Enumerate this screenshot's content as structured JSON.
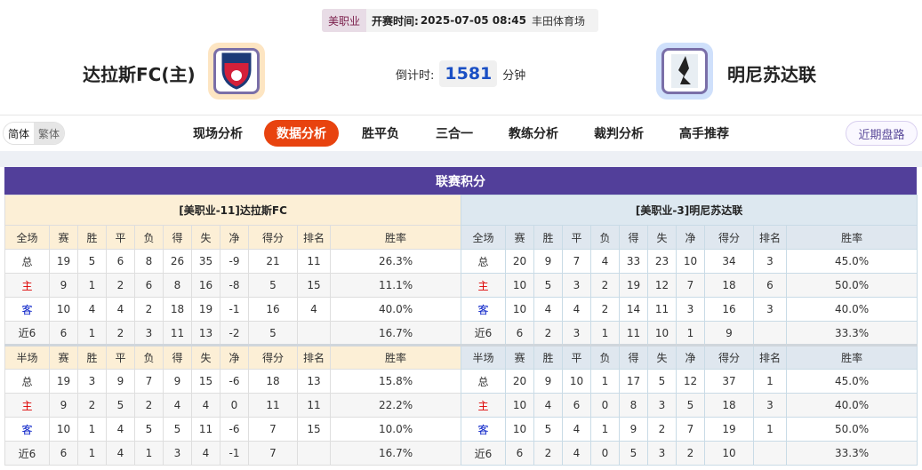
{
  "match": {
    "league": "美职业",
    "kickoff_label": "开赛时间:",
    "kickoff": "2025-07-05 08:45",
    "venue": "丰田体育场",
    "home_team": "达拉斯FC(主)",
    "away_team": "明尼苏达联",
    "countdown_label": "倒计时:",
    "countdown": "1581",
    "countdown_unit": "分钟"
  },
  "lang": {
    "simplified": "简体",
    "traditional": "繁体"
  },
  "nav": {
    "items": [
      "现场分析",
      "数据分析",
      "胜平负",
      "三合一",
      "教练分析",
      "裁判分析",
      "高手推荐"
    ],
    "active": "数据分析",
    "recent": "近期盘路"
  },
  "standings": {
    "title": "联赛积分",
    "columns_full": [
      "全场",
      "赛",
      "胜",
      "平",
      "负",
      "得",
      "失",
      "净",
      "得分",
      "排名",
      "胜率"
    ],
    "columns_half": [
      "半场",
      "赛",
      "胜",
      "平",
      "负",
      "得",
      "失",
      "净",
      "得分",
      "排名",
      "胜率"
    ],
    "colors": {
      "home": "#dd0000",
      "away": "#0019c6",
      "title_bg": "#523f9a"
    },
    "home": {
      "caption": "[美职业-11]达拉斯FC",
      "full": [
        [
          "总",
          "19",
          "5",
          "6",
          "8",
          "26",
          "35",
          "-9",
          "21",
          "11",
          "26.3%"
        ],
        [
          "主",
          "9",
          "1",
          "2",
          "6",
          "8",
          "16",
          "-8",
          "5",
          "15",
          "11.1%"
        ],
        [
          "客",
          "10",
          "4",
          "4",
          "2",
          "18",
          "19",
          "-1",
          "16",
          "4",
          "40.0%"
        ],
        [
          "近6",
          "6",
          "1",
          "2",
          "3",
          "11",
          "13",
          "-2",
          "5",
          "",
          "16.7%"
        ]
      ],
      "half": [
        [
          "总",
          "19",
          "3",
          "9",
          "7",
          "9",
          "15",
          "-6",
          "18",
          "13",
          "15.8%"
        ],
        [
          "主",
          "9",
          "2",
          "5",
          "2",
          "4",
          "4",
          "0",
          "11",
          "11",
          "22.2%"
        ],
        [
          "客",
          "10",
          "1",
          "4",
          "5",
          "5",
          "11",
          "-6",
          "7",
          "15",
          "10.0%"
        ],
        [
          "近6",
          "6",
          "1",
          "4",
          "1",
          "3",
          "4",
          "-1",
          "7",
          "",
          "16.7%"
        ]
      ]
    },
    "away": {
      "caption": "[美职业-3]明尼苏达联",
      "full": [
        [
          "总",
          "20",
          "9",
          "7",
          "4",
          "33",
          "23",
          "10",
          "34",
          "3",
          "45.0%"
        ],
        [
          "主",
          "10",
          "5",
          "3",
          "2",
          "19",
          "12",
          "7",
          "18",
          "6",
          "50.0%"
        ],
        [
          "客",
          "10",
          "4",
          "4",
          "2",
          "14",
          "11",
          "3",
          "16",
          "3",
          "40.0%"
        ],
        [
          "近6",
          "6",
          "2",
          "3",
          "1",
          "11",
          "10",
          "1",
          "9",
          "",
          "33.3%"
        ]
      ],
      "half": [
        [
          "总",
          "20",
          "9",
          "10",
          "1",
          "17",
          "5",
          "12",
          "37",
          "1",
          "45.0%"
        ],
        [
          "主",
          "10",
          "4",
          "6",
          "0",
          "8",
          "3",
          "5",
          "18",
          "3",
          "40.0%"
        ],
        [
          "客",
          "10",
          "5",
          "4",
          "1",
          "9",
          "2",
          "7",
          "19",
          "1",
          "50.0%"
        ],
        [
          "近6",
          "6",
          "2",
          "4",
          "0",
          "5",
          "3",
          "2",
          "10",
          "",
          "33.3%"
        ]
      ]
    }
  }
}
